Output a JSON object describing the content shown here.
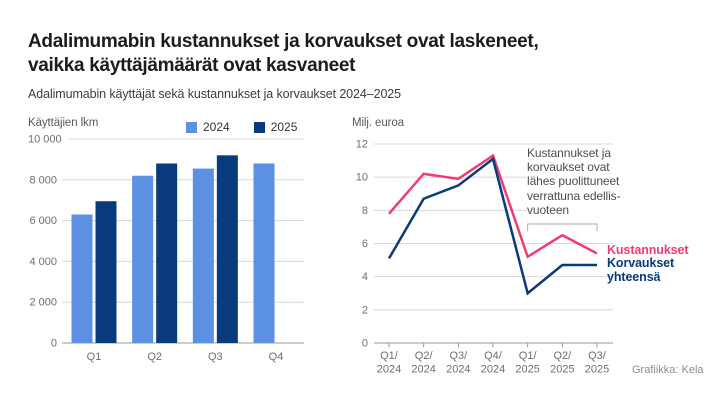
{
  "page": {
    "title_line1": "Adalimumabin kustannukset ja korvaukset ovat laskeneet,",
    "title_line2": "vaikka käyttäjämäärät ovat kasvaneet",
    "subtitle": "Adalimumabin käyttäjät sekä kustannukset ja korvaukset 2024–2025",
    "credit": "Grafiikka: Kela"
  },
  "colors": {
    "series_2024_light_blue": "#5B90E2",
    "series_2025_dark_blue": "#093A7C",
    "kustannukset_pink": "#F03C6F",
    "korvaukset_dark_blue": "#093A7C",
    "gridline": "#D8D8D8",
    "axis_line": "#9A9A9A",
    "tick_text": "#6E6E6E",
    "annotation_text": "#4D4D4D",
    "bracket": "#ABABAB"
  },
  "chart_data": [
    {
      "type": "bar",
      "axis_title": "Käyttäjien lkm",
      "categories": [
        "Q1",
        "Q2",
        "Q3",
        "Q4"
      ],
      "series": [
        {
          "name": "2024",
          "color_key": "series_2024_light_blue",
          "values": [
            6300,
            8200,
            8550,
            8800
          ]
        },
        {
          "name": "2025",
          "color_key": "series_2025_dark_blue",
          "values": [
            6950,
            8800,
            9200,
            null
          ]
        }
      ],
      "ylim": [
        0,
        10000
      ],
      "yticks": [
        0,
        2000,
        4000,
        6000,
        8000,
        10000
      ],
      "ytick_labels": [
        "0",
        "2 000",
        "4 000",
        "6 000",
        "8 000",
        "10 000"
      ],
      "legend_position": "top",
      "grid": "horizontal"
    },
    {
      "type": "line",
      "axis_title": "Milj. euroa",
      "x_tick_labels": [
        [
          "Q1/",
          "2024"
        ],
        [
          "Q2/",
          "2024"
        ],
        [
          "Q3/",
          "2024"
        ],
        [
          "Q4/",
          "2024"
        ],
        [
          "Q1/",
          "2025"
        ],
        [
          "Q2/",
          "2025"
        ],
        [
          "Q3/",
          "2025"
        ]
      ],
      "series": [
        {
          "name": "Kustannukset",
          "color_key": "kustannukset_pink",
          "values": [
            7.8,
            10.2,
            9.9,
            11.3,
            5.2,
            6.5,
            5.4
          ]
        },
        {
          "name": "Korvaukset yhteensä",
          "color_key": "korvaukset_dark_blue",
          "values": [
            5.1,
            8.7,
            9.5,
            11.1,
            3.0,
            4.7,
            4.7
          ]
        }
      ],
      "ylim": [
        0,
        12
      ],
      "yticks": [
        0,
        2,
        4,
        6,
        8,
        10,
        12
      ],
      "ytick_labels": [
        "0",
        "2",
        "4",
        "6",
        "8",
        "10",
        "12"
      ],
      "grid": "horizontal",
      "annotation": {
        "lines": [
          "Kustannukset ja",
          "korvaukset ovat",
          "lähes puolittuneet",
          "verrattuna edellis-",
          "vuoteen"
        ],
        "bracket_over": [
          "Q1/2025",
          "Q3/2025"
        ],
        "bracket_indices": [
          4,
          6
        ]
      },
      "end_labels": [
        {
          "text": "Kustannukset",
          "color_key": "kustannukset_pink"
        },
        {
          "text_line1": "Korvaukset",
          "text_line2": "yhteensä",
          "color_key": "korvaukset_dark_blue"
        }
      ]
    }
  ]
}
